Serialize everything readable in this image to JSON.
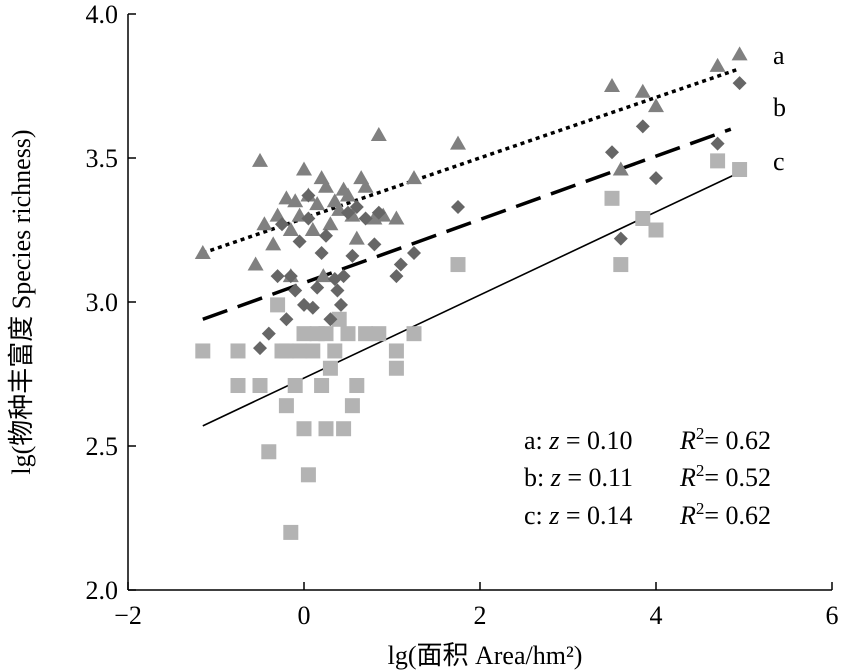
{
  "chart_data": {
    "type": "scatter",
    "xlabel": "lg(面积 Area/hm²)",
    "ylabel": "lg(物种丰富度 Species richness)",
    "xlim": [
      -2,
      6
    ],
    "ylim": [
      2.0,
      4.0
    ],
    "xticks": [
      -2,
      0,
      2,
      4,
      6
    ],
    "yticks": [
      2.0,
      2.5,
      3.0,
      3.5,
      4.0
    ],
    "xtick_labels": [
      "−2",
      "0",
      "2",
      "4",
      "6"
    ],
    "ytick_labels": [
      "2.0",
      "2.5",
      "3.0",
      "3.5",
      "4.0"
    ],
    "grid": false,
    "series": [
      {
        "name": "a",
        "marker": "triangle",
        "color": "#808080",
        "line": {
          "style": "dotted",
          "x": [
            -1.15,
            4.95
          ],
          "y": [
            3.17,
            3.81
          ]
        },
        "stats": {
          "z": "0.10",
          "R2": "0.62"
        },
        "points": [
          [
            -1.15,
            3.17
          ],
          [
            -0.5,
            3.49
          ],
          [
            -0.55,
            3.13
          ],
          [
            -0.45,
            3.27
          ],
          [
            -0.35,
            3.2
          ],
          [
            -0.3,
            3.3
          ],
          [
            -0.2,
            3.36
          ],
          [
            -0.15,
            3.25
          ],
          [
            -0.1,
            3.35
          ],
          [
            -0.05,
            3.3
          ],
          [
            0.0,
            3.46
          ],
          [
            0.05,
            3.37
          ],
          [
            0.1,
            3.25
          ],
          [
            0.15,
            3.34
          ],
          [
            0.2,
            3.43
          ],
          [
            0.25,
            3.4
          ],
          [
            0.3,
            3.27
          ],
          [
            0.35,
            3.35
          ],
          [
            0.4,
            3.32
          ],
          [
            0.45,
            3.39
          ],
          [
            0.5,
            3.37
          ],
          [
            0.55,
            3.3
          ],
          [
            0.6,
            3.22
          ],
          [
            0.65,
            3.43
          ],
          [
            0.7,
            3.4
          ],
          [
            0.8,
            3.29
          ],
          [
            0.85,
            3.58
          ],
          [
            0.9,
            3.3
          ],
          [
            1.05,
            3.29
          ],
          [
            1.25,
            3.43
          ],
          [
            1.75,
            3.55
          ],
          [
            0.22,
            3.09
          ],
          [
            -0.15,
            3.09
          ],
          [
            3.5,
            3.75
          ],
          [
            3.6,
            3.46
          ],
          [
            3.85,
            3.73
          ],
          [
            4.0,
            3.68
          ],
          [
            4.7,
            3.82
          ],
          [
            4.95,
            3.86
          ]
        ]
      },
      {
        "name": "b",
        "marker": "diamond",
        "color": "#666666",
        "line": {
          "style": "dashed",
          "x": [
            -1.15,
            4.85
          ],
          "y": [
            2.94,
            3.6
          ]
        },
        "stats": {
          "z": "0.11",
          "R2": "0.52"
        },
        "points": [
          [
            -0.5,
            2.84
          ],
          [
            -0.4,
            2.89
          ],
          [
            -0.3,
            3.09
          ],
          [
            -0.25,
            3.27
          ],
          [
            -0.2,
            2.94
          ],
          [
            -0.15,
            3.09
          ],
          [
            -0.1,
            3.04
          ],
          [
            -0.05,
            3.21
          ],
          [
            0.0,
            2.99
          ],
          [
            0.05,
            3.29
          ],
          [
            0.1,
            2.98
          ],
          [
            0.15,
            3.05
          ],
          [
            0.2,
            3.17
          ],
          [
            0.25,
            3.23
          ],
          [
            0.3,
            2.94
          ],
          [
            0.35,
            3.08
          ],
          [
            0.38,
            3.04
          ],
          [
            0.42,
            2.99
          ],
          [
            0.45,
            3.09
          ],
          [
            0.5,
            3.31
          ],
          [
            0.55,
            3.16
          ],
          [
            0.6,
            3.33
          ],
          [
            0.7,
            3.29
          ],
          [
            0.8,
            3.2
          ],
          [
            0.85,
            3.31
          ],
          [
            1.05,
            3.09
          ],
          [
            1.1,
            3.13
          ],
          [
            1.25,
            3.17
          ],
          [
            1.75,
            3.33
          ],
          [
            0.05,
            3.37
          ],
          [
            3.5,
            3.52
          ],
          [
            3.6,
            3.22
          ],
          [
            3.85,
            3.61
          ],
          [
            4.0,
            3.43
          ],
          [
            4.7,
            3.55
          ],
          [
            4.95,
            3.76
          ]
        ]
      },
      {
        "name": "c",
        "marker": "square",
        "color": "#b3b3b3",
        "line": {
          "style": "solid",
          "x": [
            -1.15,
            4.95
          ],
          "y": [
            2.57,
            3.45
          ]
        },
        "stats": {
          "z": "0.14",
          "R2": "0.62"
        },
        "points": [
          [
            -1.15,
            2.83
          ],
          [
            -0.75,
            2.71
          ],
          [
            -0.75,
            2.83
          ],
          [
            -0.5,
            2.71
          ],
          [
            -0.4,
            2.48
          ],
          [
            -0.3,
            2.99
          ],
          [
            -0.25,
            2.83
          ],
          [
            -0.2,
            2.64
          ],
          [
            -0.15,
            2.2
          ],
          [
            -0.1,
            2.71
          ],
          [
            -0.05,
            2.83
          ],
          [
            0.0,
            2.89
          ],
          [
            0.0,
            2.56
          ],
          [
            0.05,
            2.4
          ],
          [
            0.1,
            2.83
          ],
          [
            0.15,
            2.89
          ],
          [
            0.2,
            2.71
          ],
          [
            0.25,
            2.56
          ],
          [
            0.3,
            2.77
          ],
          [
            0.35,
            2.83
          ],
          [
            0.4,
            2.94
          ],
          [
            0.45,
            2.56
          ],
          [
            0.5,
            2.89
          ],
          [
            0.55,
            2.64
          ],
          [
            0.6,
            2.71
          ],
          [
            0.7,
            2.89
          ],
          [
            0.85,
            2.89
          ],
          [
            1.05,
            2.83
          ],
          [
            1.05,
            2.77
          ],
          [
            1.25,
            2.89
          ],
          [
            1.75,
            3.13
          ],
          [
            3.5,
            3.36
          ],
          [
            3.6,
            3.13
          ],
          [
            3.85,
            3.29
          ],
          [
            4.0,
            3.25
          ],
          [
            4.7,
            3.49
          ],
          [
            4.95,
            3.46
          ],
          [
            -0.2,
            2.83
          ],
          [
            0.25,
            2.89
          ]
        ]
      }
    ]
  }
}
